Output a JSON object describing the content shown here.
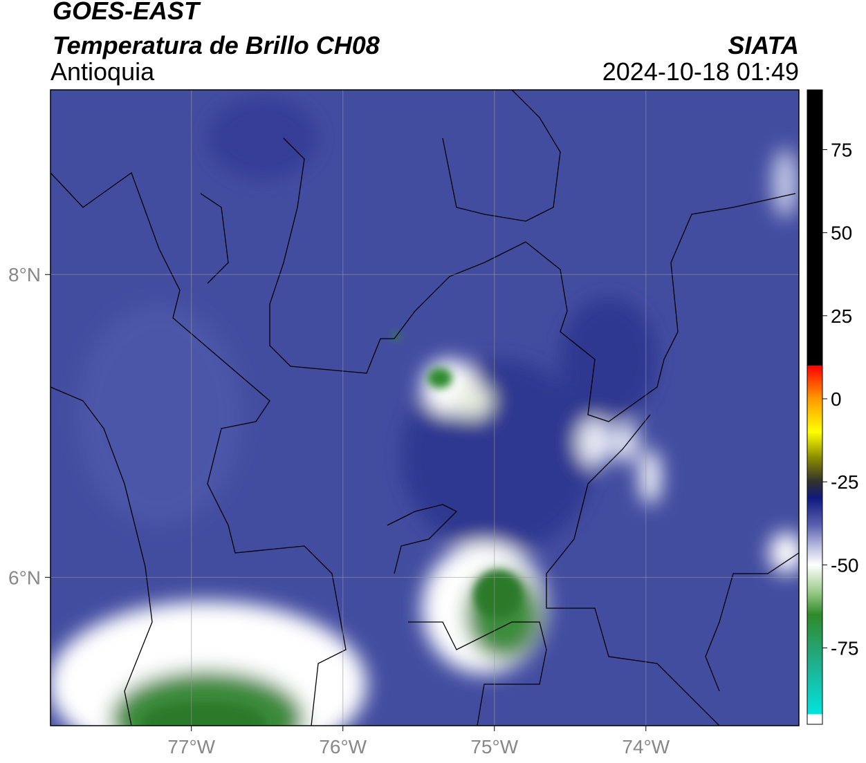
{
  "header": {
    "title": "GOES-EAST",
    "subtitle": "Temperatura de Brillo CH08",
    "region": "Antioquia",
    "source": "SIATA",
    "datetime": "2024-10-18 01:49"
  },
  "map": {
    "xlim": [
      -77.93,
      -72.99
    ],
    "ylim": [
      5.02,
      9.22
    ],
    "xticks": [
      {
        "value": -77,
        "label": "77°W"
      },
      {
        "value": -76,
        "label": "76°W"
      },
      {
        "value": -75,
        "label": "75°W"
      },
      {
        "value": -74,
        "label": "74°W"
      }
    ],
    "yticks": [
      {
        "value": 8,
        "label": "8°N"
      },
      {
        "value": 6,
        "label": "6°N"
      }
    ],
    "grid": true
  },
  "colorbar": {
    "lim": [
      -98,
      93
    ],
    "ticks": [
      75,
      50,
      25,
      0,
      -25,
      -50,
      -75
    ],
    "colormap": [
      [
        -98,
        "#ffffff"
      ],
      [
        -95,
        "#ffffff"
      ],
      [
        -95,
        "#00e5e0"
      ],
      [
        -80,
        "#20b090"
      ],
      [
        -65,
        "#2e8a2a"
      ],
      [
        -58,
        "#9ccc8a"
      ],
      [
        -50,
        "#ffffff"
      ],
      [
        -45,
        "#c0c4e4"
      ],
      [
        -38,
        "#5a60b0"
      ],
      [
        -30,
        "#101a80"
      ],
      [
        -25,
        "#303030"
      ],
      [
        -18,
        "#888800"
      ],
      [
        -10,
        "#ffff00"
      ],
      [
        0,
        "#ff9900"
      ],
      [
        10,
        "#ff0000"
      ],
      [
        10,
        "#000000"
      ],
      [
        93,
        "#000000"
      ]
    ]
  }
}
